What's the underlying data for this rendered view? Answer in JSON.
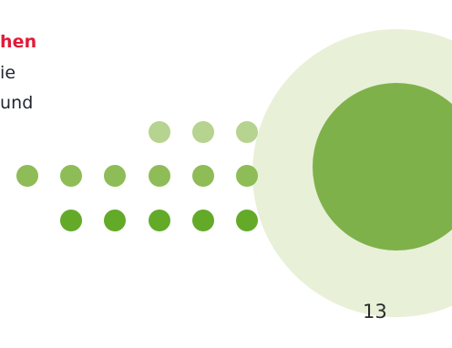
{
  "text": {
    "line_1": "hen",
    "line_2": "ie",
    "line_3": "und"
  },
  "page": {
    "number": "13"
  },
  "colors": {
    "highlight_text": "#e31937",
    "body_text": "#1f2430",
    "light_circle": "#e8f0d8",
    "main_circle": "#7fb14a",
    "dot_light": "#b6d38f",
    "dot_mid": "#8ebc56",
    "dot_dark": "#64aa29"
  }
}
